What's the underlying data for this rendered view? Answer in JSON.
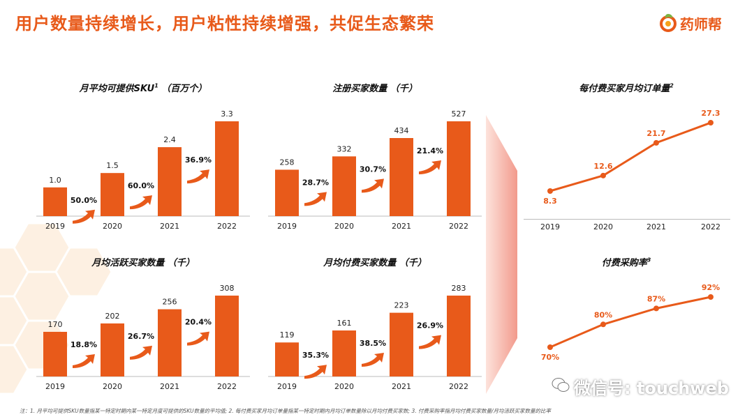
{
  "header": {
    "title": "用户数量持续增长，用户粘性持续增强，共促生态繁荣",
    "logo_text": "药师帮"
  },
  "footnote": "注：1. 月平均可提供SKU数量指某一特定时期内某一特定月度可提供的SKU数量的平均值; 2. 每付费买家月均订单量指某一特定时期内月均订单数量除以月均付费买家数; 3. 付费采购率指月均付费买家数量/月均活跃买家数量的比率",
  "watermark": "微信号: touchweb",
  "chart_data": [
    {
      "id": "sku",
      "type": "bar",
      "title": "月平均可提供SKU",
      "title_sup": "1",
      "title_unit": "（百万个）",
      "categories": [
        "2019",
        "2020",
        "2021",
        "2022"
      ],
      "values": [
        1.0,
        1.5,
        2.4,
        3.3
      ],
      "value_labels": [
        "1.0",
        "1.5",
        "2.4",
        "3.3"
      ],
      "growth": [
        "50.0%",
        "60.0%",
        "36.9%"
      ],
      "ylim": [
        0,
        3.3
      ]
    },
    {
      "id": "registered",
      "type": "bar",
      "title": "注册买家数量",
      "title_sup": "",
      "title_unit": "（千）",
      "categories": [
        "2019",
        "2020",
        "2021",
        "2022"
      ],
      "values": [
        258,
        332,
        434,
        527
      ],
      "value_labels": [
        "258",
        "332",
        "434",
        "527"
      ],
      "growth": [
        "28.7%",
        "30.7%",
        "21.4%"
      ],
      "ylim": [
        0,
        527
      ]
    },
    {
      "id": "active",
      "type": "bar",
      "title": "月均活跃买家数量",
      "title_sup": "",
      "title_unit": "（千）",
      "categories": [
        "2019",
        "2020",
        "2021",
        "2022"
      ],
      "values": [
        170,
        202,
        256,
        308
      ],
      "value_labels": [
        "170",
        "202",
        "256",
        "308"
      ],
      "growth": [
        "18.8%",
        "26.7%",
        "20.4%"
      ],
      "ylim": [
        0,
        308
      ]
    },
    {
      "id": "paying",
      "type": "bar",
      "title": "月均付费买家数量",
      "title_sup": "",
      "title_unit": "（千）",
      "categories": [
        "2019",
        "2020",
        "2021",
        "2022"
      ],
      "values": [
        119,
        161,
        223,
        283
      ],
      "value_labels": [
        "119",
        "161",
        "223",
        "283"
      ],
      "growth": [
        "35.3%",
        "38.5%",
        "26.9%"
      ],
      "ylim": [
        0,
        283
      ]
    },
    {
      "id": "orders",
      "type": "line",
      "title": "每付费买家月均订单量",
      "title_sup": "2",
      "title_unit": "",
      "categories": [
        "2019",
        "2020",
        "2021",
        "2022"
      ],
      "values": [
        8.3,
        12.6,
        21.7,
        27.3
      ],
      "value_labels": [
        "8.3",
        "12.6",
        "21.7",
        "27.3"
      ],
      "label_side": [
        "below",
        "above",
        "above",
        "above"
      ],
      "ylim": [
        8.3,
        27.3
      ]
    },
    {
      "id": "conversion",
      "type": "line",
      "title": "付费采购率",
      "title_sup": "3",
      "title_unit": "",
      "categories": [
        "2019",
        "2020",
        "2021",
        "2022"
      ],
      "values": [
        70,
        80,
        87,
        92
      ],
      "value_labels": [
        "70%",
        "80%",
        "87%",
        "92%"
      ],
      "label_side": [
        "below",
        "above",
        "above",
        "above"
      ],
      "ylim": [
        70,
        92
      ]
    }
  ],
  "colors": {
    "accent": "#e85a1a",
    "bar": "#e85a1a",
    "arrow": "#e85a1a",
    "hex": "#fbe8d3",
    "funnel": "#f5b2a6"
  }
}
